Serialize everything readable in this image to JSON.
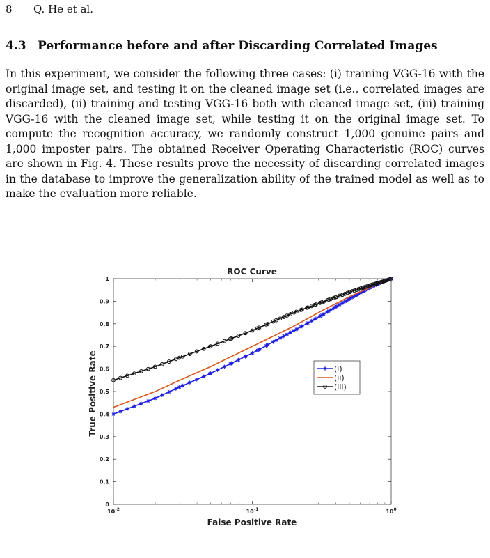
{
  "header": {
    "page_number": "8",
    "authors": "Q. He et al."
  },
  "section": {
    "number": "4.3",
    "title": "Performance before and after Discarding Correlated Images"
  },
  "paragraph": "In this experiment, we consider the following three cases: (i) training VGG-16 with the original image set, and testing it on the cleaned image set (i.e., correlated images are discarded), (ii) training and testing VGG-16 both with cleaned image set, (iii) training VGG-16 with the cleaned image set, while testing it on the original image set. To compute the recognition accuracy, we randomly construct 1,000 genuine pairs and 1,000 imposter pairs. The obtained Receiver Operating Characteristic (ROC) curves are shown in Fig. 4. These results prove the necessity of discarding correlated images in the database to improve the generalization ability of the trained model as well as to make the evaluation more reliable.",
  "chart_data": {
    "type": "line",
    "title": "ROC Curve",
    "xlabel": "False Positive Rate",
    "ylabel": "True Positive Rate",
    "xscale": "log",
    "xlim": [
      0.01,
      1
    ],
    "ylim": [
      0,
      1
    ],
    "x_ticks": [
      {
        "value": 0.01,
        "base": "10",
        "exp": "-2"
      },
      {
        "value": 0.1,
        "base": "10",
        "exp": "-1"
      },
      {
        "value": 1,
        "base": "10",
        "exp": "0"
      }
    ],
    "y_ticks": [
      "0",
      "0.1",
      "0.2",
      "0.3",
      "0.4",
      "0.5",
      "0.6",
      "0.7",
      "0.8",
      "0.9",
      "1"
    ],
    "grid": false,
    "legend_position": "right",
    "series": [
      {
        "name": "(i)",
        "color": "#1f1fe0",
        "marker": "star",
        "x": [
          0.01,
          0.02,
          0.03,
          0.05,
          0.1,
          0.2,
          0.3,
          0.5,
          0.7,
          0.9,
          1.0
        ],
        "y": [
          0.4,
          0.47,
          0.52,
          0.58,
          0.67,
          0.77,
          0.83,
          0.91,
          0.96,
          0.99,
          1.0
        ]
      },
      {
        "name": "(ii)",
        "color": "#d9551a",
        "marker": "none",
        "x": [
          0.01,
          0.02,
          0.03,
          0.05,
          0.1,
          0.2,
          0.3,
          0.5,
          0.7,
          0.9,
          1.0
        ],
        "y": [
          0.43,
          0.5,
          0.55,
          0.61,
          0.7,
          0.79,
          0.85,
          0.92,
          0.96,
          0.99,
          1.0
        ]
      },
      {
        "name": "(iii)",
        "color": "#111111",
        "marker": "circle",
        "x": [
          0.01,
          0.02,
          0.03,
          0.05,
          0.1,
          0.2,
          0.3,
          0.5,
          0.7,
          0.9,
          1.0
        ],
        "y": [
          0.55,
          0.61,
          0.65,
          0.7,
          0.77,
          0.85,
          0.89,
          0.94,
          0.97,
          0.99,
          1.0
        ]
      }
    ]
  }
}
